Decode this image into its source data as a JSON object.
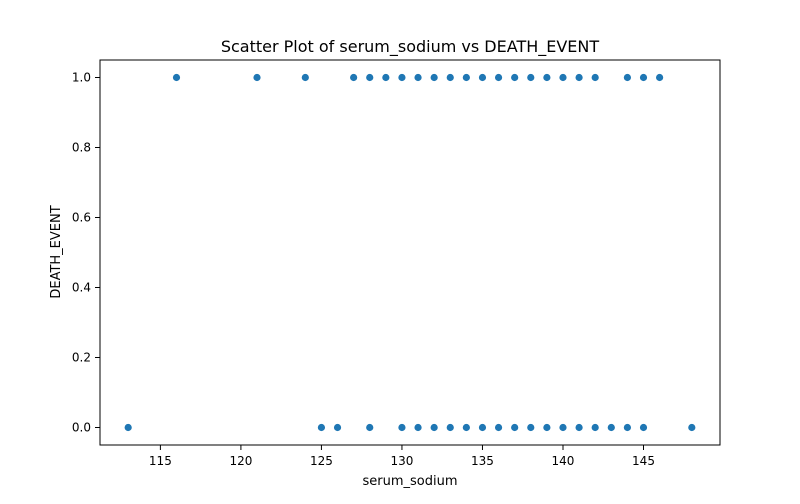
{
  "chart_data": {
    "type": "scatter",
    "title": "Scatter Plot of serum_sodium vs DEATH_EVENT",
    "xlabel": "serum_sodium",
    "ylabel": "DEATH_EVENT",
    "xlim": [
      111.25,
      149.75
    ],
    "ylim": [
      -0.05,
      1.05
    ],
    "xticks": [
      115,
      120,
      125,
      130,
      135,
      140,
      145
    ],
    "xtick_labels": [
      "115",
      "120",
      "125",
      "130",
      "135",
      "140",
      "145"
    ],
    "yticks": [
      0.0,
      0.2,
      0.4,
      0.6,
      0.8,
      1.0
    ],
    "ytick_labels": [
      "0.0",
      "0.2",
      "0.4",
      "0.6",
      "0.8",
      "1.0"
    ],
    "grid": false,
    "marker_color": "#1f77b4",
    "points": [
      {
        "x": 116,
        "y": 1
      },
      {
        "x": 121,
        "y": 1
      },
      {
        "x": 124,
        "y": 1
      },
      {
        "x": 127,
        "y": 1
      },
      {
        "x": 128,
        "y": 1
      },
      {
        "x": 129,
        "y": 1
      },
      {
        "x": 130,
        "y": 1
      },
      {
        "x": 131,
        "y": 1
      },
      {
        "x": 132,
        "y": 1
      },
      {
        "x": 133,
        "y": 1
      },
      {
        "x": 134,
        "y": 1
      },
      {
        "x": 135,
        "y": 1
      },
      {
        "x": 136,
        "y": 1
      },
      {
        "x": 137,
        "y": 1
      },
      {
        "x": 138,
        "y": 1
      },
      {
        "x": 139,
        "y": 1
      },
      {
        "x": 140,
        "y": 1
      },
      {
        "x": 141,
        "y": 1
      },
      {
        "x": 142,
        "y": 1
      },
      {
        "x": 144,
        "y": 1
      },
      {
        "x": 145,
        "y": 1
      },
      {
        "x": 146,
        "y": 1
      },
      {
        "x": 113,
        "y": 0
      },
      {
        "x": 125,
        "y": 0
      },
      {
        "x": 126,
        "y": 0
      },
      {
        "x": 128,
        "y": 0
      },
      {
        "x": 130,
        "y": 0
      },
      {
        "x": 131,
        "y": 0
      },
      {
        "x": 132,
        "y": 0
      },
      {
        "x": 133,
        "y": 0
      },
      {
        "x": 134,
        "y": 0
      },
      {
        "x": 135,
        "y": 0
      },
      {
        "x": 136,
        "y": 0
      },
      {
        "x": 137,
        "y": 0
      },
      {
        "x": 138,
        "y": 0
      },
      {
        "x": 139,
        "y": 0
      },
      {
        "x": 140,
        "y": 0
      },
      {
        "x": 141,
        "y": 0
      },
      {
        "x": 142,
        "y": 0
      },
      {
        "x": 143,
        "y": 0
      },
      {
        "x": 144,
        "y": 0
      },
      {
        "x": 145,
        "y": 0
      },
      {
        "x": 148,
        "y": 0
      }
    ]
  }
}
